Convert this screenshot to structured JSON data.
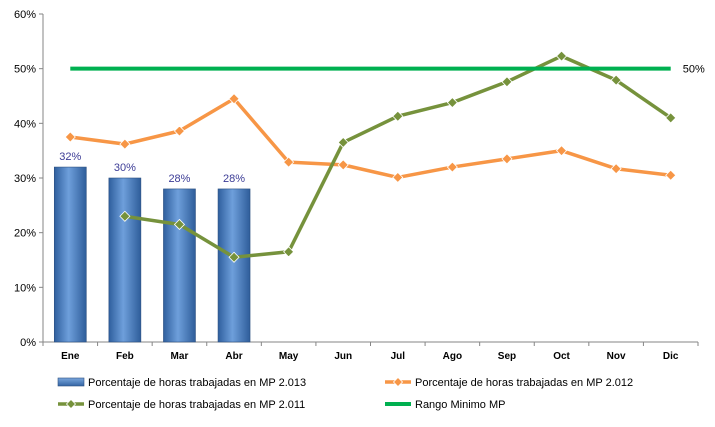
{
  "chart_data": {
    "type": "bar",
    "categories": [
      "Ene",
      "Feb",
      "Mar",
      "Abr",
      "May",
      "Jun",
      "Jul",
      "Ago",
      "Sep",
      "Oct",
      "Nov",
      "Dic"
    ],
    "ylim": [
      0,
      60
    ],
    "yticks": [
      "0%",
      "10%",
      "20%",
      "30%",
      "40%",
      "50%",
      "60%"
    ],
    "grid": false,
    "legend_position": "bottom",
    "series": [
      {
        "name": "Porcentaje de horas trabajadas en MP 2.013",
        "type": "bar",
        "color": "#4a7fc4",
        "values": [
          32,
          30,
          28,
          28,
          null,
          null,
          null,
          null,
          null,
          null,
          null,
          null
        ],
        "data_labels": [
          "32%",
          "30%",
          "28%",
          "28%"
        ]
      },
      {
        "name": "Porcentaje de horas trabajadas en MP 2.012",
        "type": "line",
        "color": "#f79646",
        "values": [
          37.5,
          36.2,
          38.6,
          44.5,
          32.9,
          32.4,
          30.1,
          32.0,
          33.5,
          35.0,
          31.7,
          30.5
        ]
      },
      {
        "name": "Porcentaje de horas trabajadas en MP 2.011",
        "type": "line",
        "color": "#76923c",
        "values": [
          null,
          23.0,
          21.5,
          15.5,
          16.5,
          36.5,
          41.3,
          43.8,
          47.6,
          52.3,
          47.9,
          41.0
        ]
      },
      {
        "name": "Rango Minimo MP",
        "type": "line",
        "color": "#00b050",
        "values": [
          50,
          50,
          50,
          50,
          50,
          50,
          50,
          50,
          50,
          50,
          50,
          50
        ],
        "end_label": "50%"
      }
    ]
  }
}
